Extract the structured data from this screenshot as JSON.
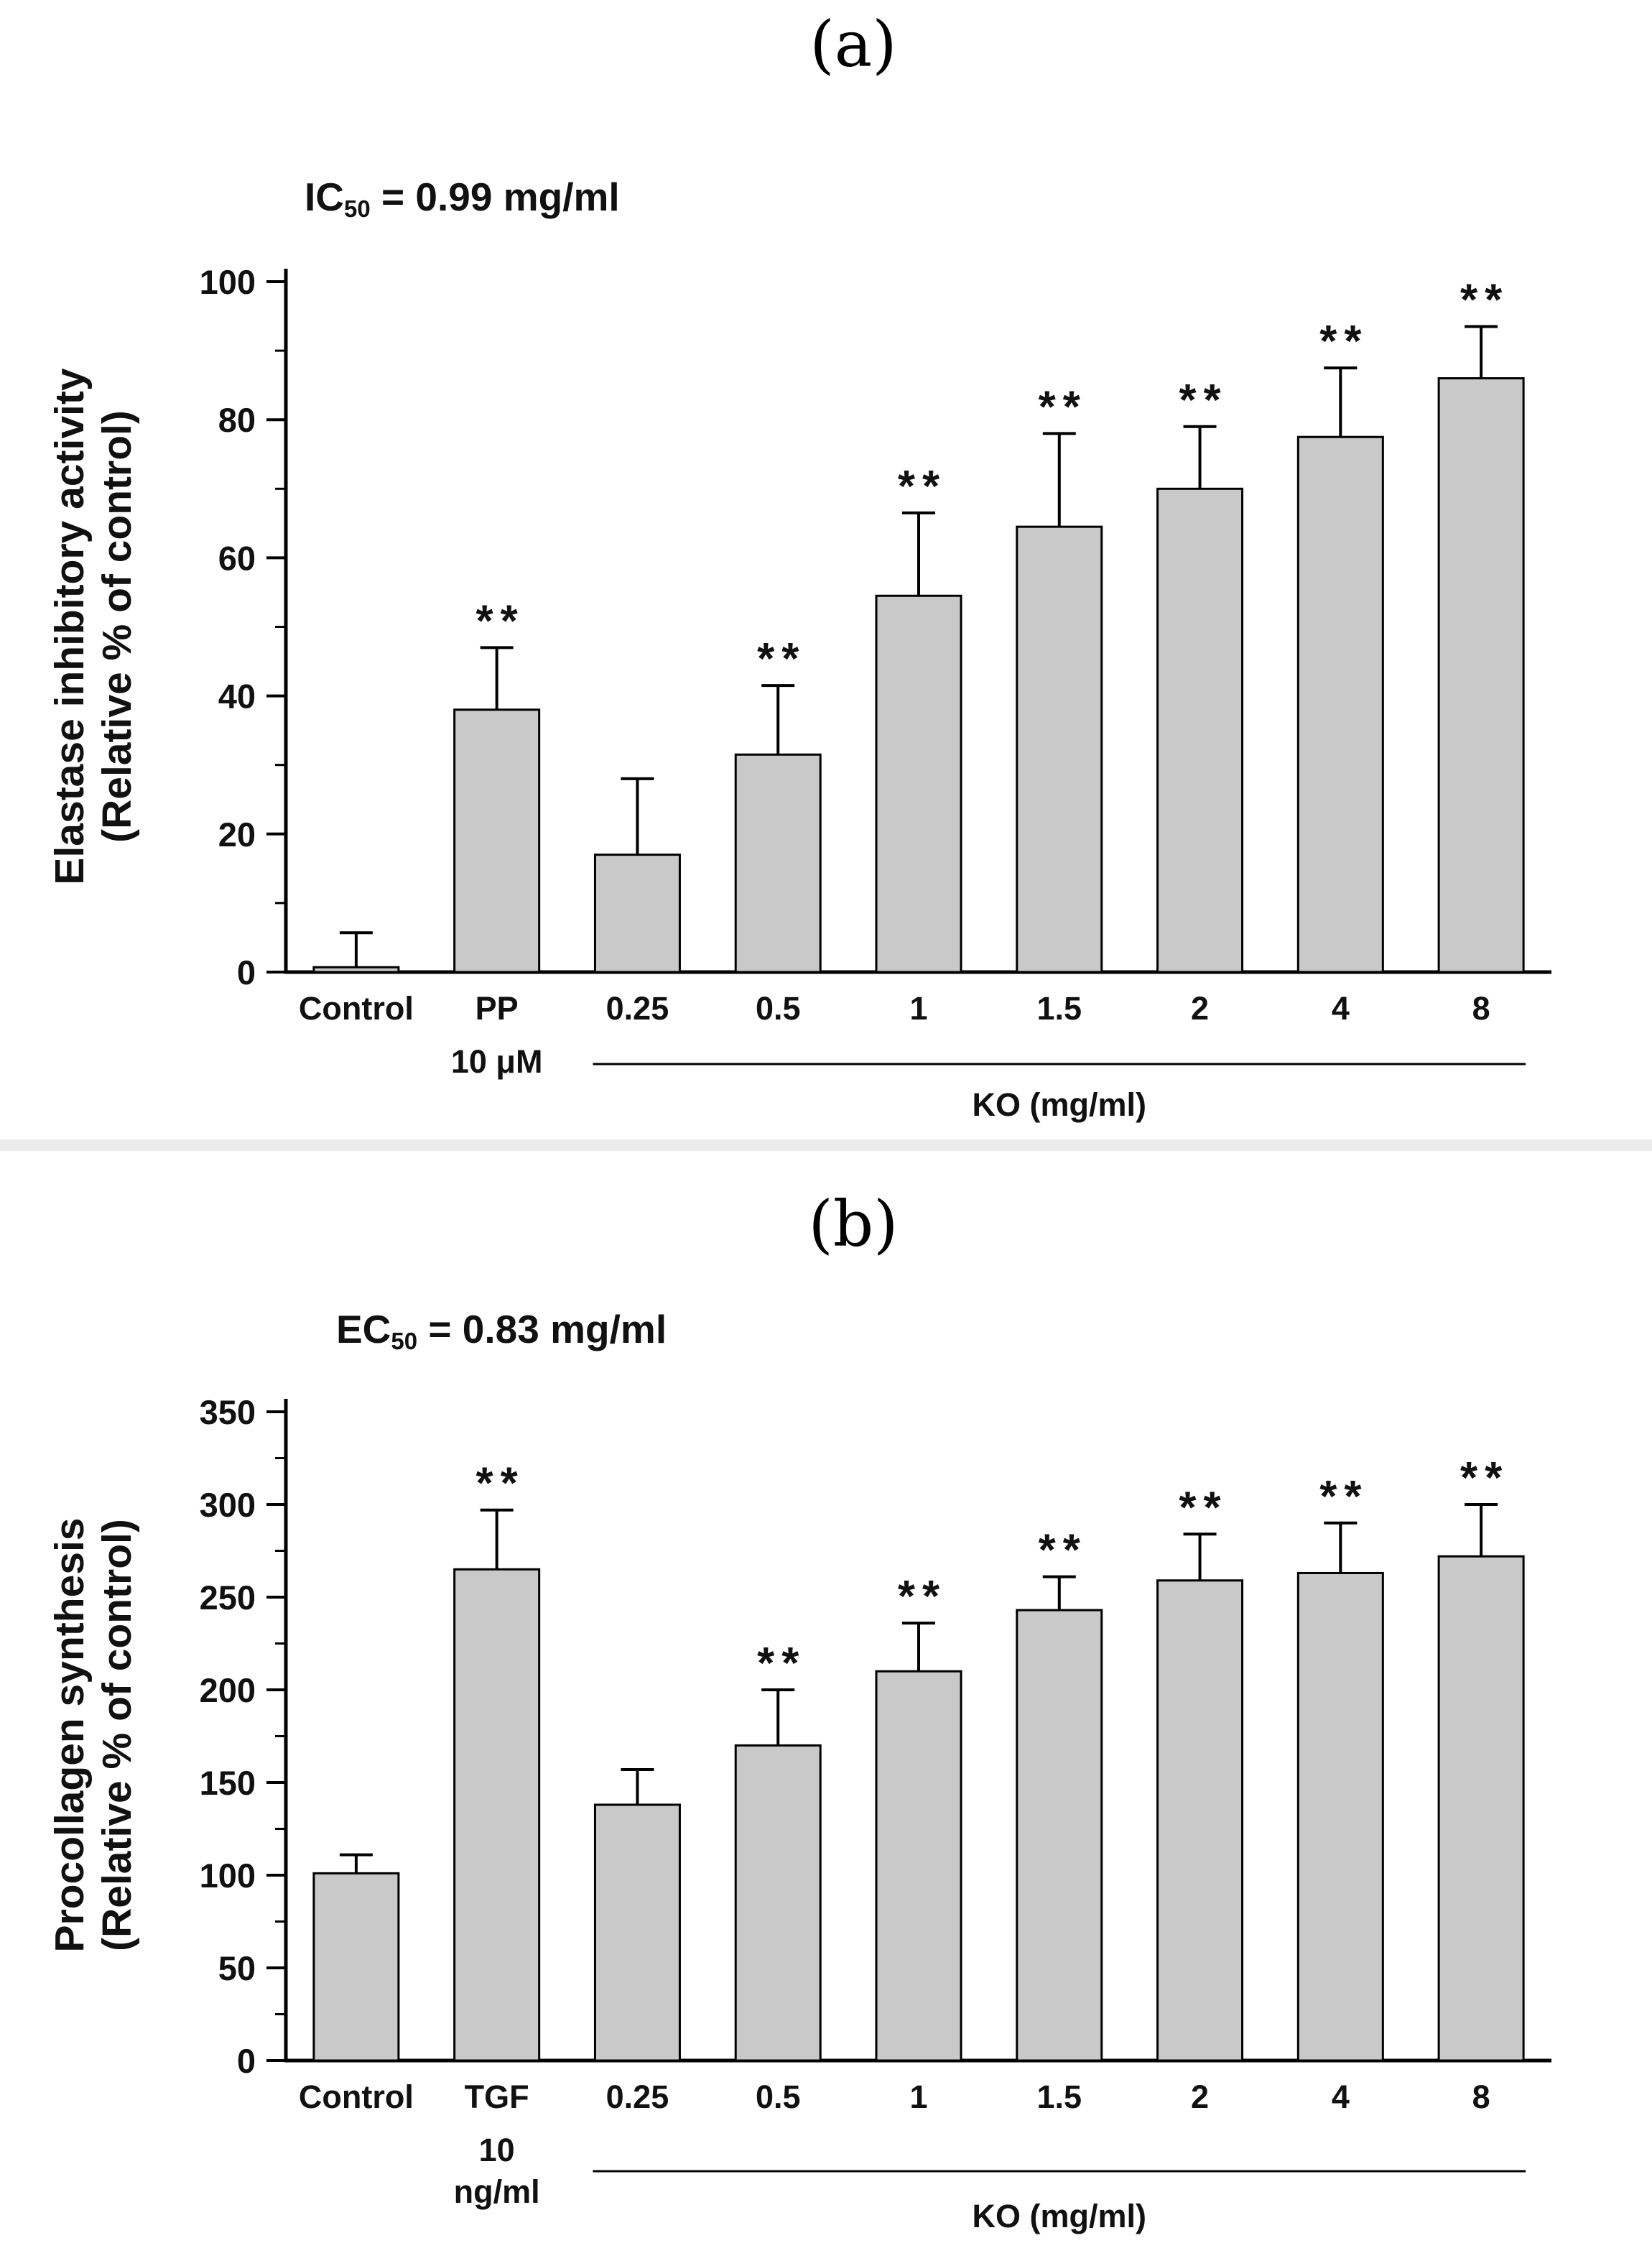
{
  "figure": {
    "background": "#ffffff",
    "bar_fill": "#c9c9c9",
    "axis_color": "#000000"
  },
  "chart_data": [
    {
      "type": "bar",
      "panel_label": "(a)",
      "annotation": {
        "prefix": "IC",
        "sub": "50",
        "rest": " = 0.99 mg/ml"
      },
      "ylabel_lines": [
        "Elastase inhibitory activity",
        "(Relative % of control)"
      ],
      "ylim": [
        0,
        100
      ],
      "yticks": [
        0,
        20,
        40,
        60,
        80,
        100
      ],
      "categories": [
        "Control",
        "PP",
        "0.25",
        "0.5",
        "1",
        "1.5",
        "2",
        "4",
        "8"
      ],
      "sublabels": [
        [],
        [
          "10 μM"
        ],
        [],
        [],
        [],
        [],
        [],
        [],
        []
      ],
      "values": [
        0.7,
        38,
        17,
        31.5,
        54.5,
        64.5,
        70,
        77.5,
        86
      ],
      "errors": [
        5,
        9,
        11,
        10,
        12,
        13.5,
        9,
        10,
        7.5
      ],
      "significance": [
        "",
        "**",
        "",
        "**",
        "**",
        "**",
        "**",
        "**",
        "**"
      ],
      "group": {
        "label": "KO (mg/ml)",
        "start_index": 2,
        "end_index": 8
      },
      "bar_color": "#c9c9c9",
      "legend": "none",
      "grid": "off"
    },
    {
      "type": "bar",
      "panel_label": "(b)",
      "annotation": {
        "prefix": "EC",
        "sub": "50",
        "rest": " = 0.83 mg/ml"
      },
      "ylabel_lines": [
        "Procollagen synthesis",
        "(Relative % of control)"
      ],
      "ylim": [
        0,
        350
      ],
      "yticks": [
        0,
        50,
        100,
        150,
        200,
        250,
        300,
        350
      ],
      "categories": [
        "Control",
        "TGF",
        "0.25",
        "0.5",
        "1",
        "1.5",
        "2",
        "4",
        "8"
      ],
      "sublabels": [
        [],
        [
          "10",
          "ng/ml"
        ],
        [],
        [],
        [],
        [],
        [],
        [],
        []
      ],
      "values": [
        101,
        265,
        138,
        170,
        210,
        243,
        259,
        263,
        272
      ],
      "errors": [
        10,
        32,
        19,
        30,
        26,
        18,
        25,
        27,
        28
      ],
      "significance": [
        "",
        "**",
        "",
        "**",
        "**",
        "**",
        "**",
        "**",
        "**"
      ],
      "group": {
        "label": "KO (mg/ml)",
        "start_index": 2,
        "end_index": 8
      },
      "bar_color": "#c9c9c9",
      "legend": "none",
      "grid": "off"
    }
  ]
}
